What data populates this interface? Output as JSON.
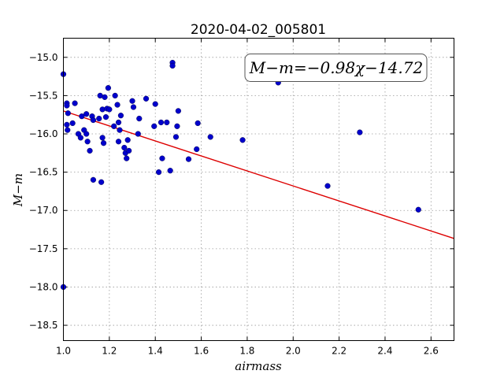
{
  "chart_data": {
    "type": "scatter",
    "title": "2020-04-02_005801",
    "xlabel": "airmass",
    "ylabel": "M−m",
    "xlim": [
      1.0,
      2.7
    ],
    "ylim": [
      -18.7,
      -14.75
    ],
    "y_inverted": true,
    "grid": true,
    "x_ticks": [
      1.0,
      1.2,
      1.4,
      1.6,
      1.8,
      2.0,
      2.2,
      2.4,
      2.6
    ],
    "x_tick_labels": [
      "1.0",
      "1.2",
      "1.4",
      "1.6",
      "1.8",
      "2.0",
      "2.2",
      "2.4",
      "2.6"
    ],
    "y_ticks": [
      -15.0,
      -15.5,
      -16.0,
      -16.5,
      -17.0,
      -17.5,
      -18.0,
      -18.5
    ],
    "y_tick_labels": [
      "−15.0",
      "−15.5",
      "−16.0",
      "−16.5",
      "−17.0",
      "−17.5",
      "−18.0",
      "−18.5"
    ],
    "annotation": "M−m=−0.98χ−14.72",
    "fit": {
      "slope": -0.98,
      "intercept": -14.72,
      "color": "#dd0000"
    },
    "point_color": "#0000cc",
    "points": [
      [
        1.0,
        -15.22
      ],
      [
        1.0,
        -18.0
      ],
      [
        1.015,
        -15.6
      ],
      [
        1.015,
        -15.63
      ],
      [
        1.015,
        -15.88
      ],
      [
        1.018,
        -15.95
      ],
      [
        1.02,
        -15.73
      ],
      [
        1.04,
        -15.86
      ],
      [
        1.05,
        -15.6
      ],
      [
        1.065,
        -16.0
      ],
      [
        1.075,
        -16.05
      ],
      [
        1.08,
        -15.77
      ],
      [
        1.09,
        -15.95
      ],
      [
        1.1,
        -15.74
      ],
      [
        1.1,
        -16.0
      ],
      [
        1.105,
        -16.1
      ],
      [
        1.115,
        -16.22
      ],
      [
        1.125,
        -15.77
      ],
      [
        1.13,
        -15.82
      ],
      [
        1.13,
        -16.6
      ],
      [
        1.155,
        -15.8
      ],
      [
        1.16,
        -15.5
      ],
      [
        1.165,
        -16.63
      ],
      [
        1.17,
        -15.68
      ],
      [
        1.17,
        -16.05
      ],
      [
        1.175,
        -16.12
      ],
      [
        1.18,
        -15.52
      ],
      [
        1.185,
        -15.78
      ],
      [
        1.19,
        -15.67
      ],
      [
        1.195,
        -15.4
      ],
      [
        1.2,
        -15.68
      ],
      [
        1.22,
        -15.9
      ],
      [
        1.225,
        -15.5
      ],
      [
        1.235,
        -15.62
      ],
      [
        1.24,
        -15.85
      ],
      [
        1.24,
        -16.1
      ],
      [
        1.245,
        -15.95
      ],
      [
        1.25,
        -15.76
      ],
      [
        1.265,
        -16.18
      ],
      [
        1.27,
        -16.25
      ],
      [
        1.275,
        -16.32
      ],
      [
        1.28,
        -16.08
      ],
      [
        1.285,
        -16.22
      ],
      [
        1.3,
        -15.57
      ],
      [
        1.305,
        -15.65
      ],
      [
        1.325,
        -16.0
      ],
      [
        1.33,
        -15.8
      ],
      [
        1.36,
        -15.54
      ],
      [
        1.395,
        -15.9
      ],
      [
        1.4,
        -15.61
      ],
      [
        1.415,
        -16.5
      ],
      [
        1.425,
        -15.85
      ],
      [
        1.43,
        -16.32
      ],
      [
        1.45,
        -15.85
      ],
      [
        1.465,
        -16.48
      ],
      [
        1.475,
        -15.07
      ],
      [
        1.475,
        -15.11
      ],
      [
        1.49,
        -16.04
      ],
      [
        1.495,
        -15.9
      ],
      [
        1.5,
        -15.7
      ],
      [
        1.545,
        -16.33
      ],
      [
        1.58,
        -16.2
      ],
      [
        1.585,
        -15.86
      ],
      [
        1.64,
        -16.04
      ],
      [
        1.78,
        -16.08
      ],
      [
        1.935,
        -15.33
      ],
      [
        2.15,
        -16.68
      ],
      [
        2.29,
        -15.98
      ],
      [
        2.545,
        -16.99
      ]
    ]
  }
}
